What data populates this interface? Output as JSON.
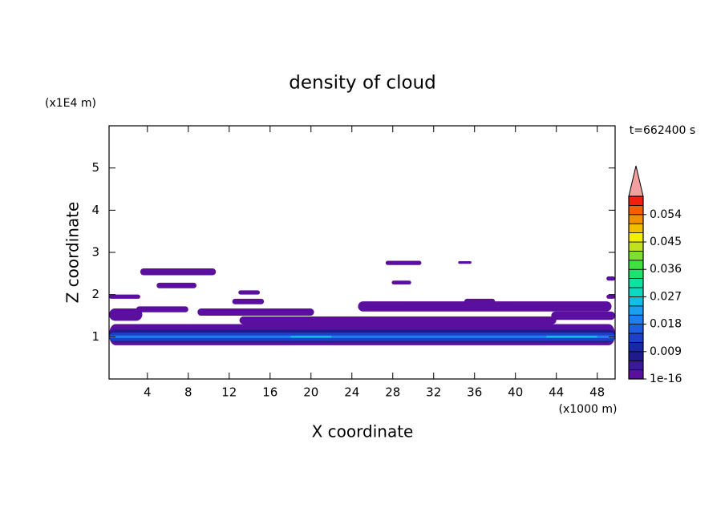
{
  "chart_data": {
    "type": "contour",
    "title": "density of cloud",
    "xlabel": "X coordinate",
    "ylabel": "Z coordinate",
    "xunit": "(x1000 m)",
    "yunit": "(x1E4 m)",
    "annotation": "t=662400 s",
    "xlim": [
      0.25,
      49.75
    ],
    "ylim": [
      0,
      6
    ],
    "xticks": [
      4,
      8,
      12,
      16,
      20,
      24,
      28,
      32,
      36,
      40,
      44,
      48
    ],
    "yticks": [
      1,
      2,
      3,
      4,
      5
    ],
    "clim": [
      0,
      0.06
    ],
    "cticks": [
      {
        "value": 1e-16,
        "label": "1e-16"
      },
      0.009,
      0.018,
      0.027,
      0.036,
      0.045,
      0.054
    ],
    "colors": [
      "#5b0f9e",
      "#3a1a9a",
      "#201a8c",
      "#1a28a8",
      "#1e40c8",
      "#1f5ee0",
      "#1e80f0",
      "#1aa0f0",
      "#10c0e0",
      "#10d8c0",
      "#10e0a0",
      "#20e070",
      "#40e040",
      "#80e030",
      "#c0e020",
      "#f0f000",
      "#f0c000",
      "#f09000",
      "#f06000",
      "#f02010"
    ],
    "over_color": "#f4a0a0",
    "regions": [
      {
        "x": [
          0.25,
          49.75
        ],
        "z": [
          0.8,
          1.3
        ],
        "value": 0.002
      },
      {
        "x": [
          0.25,
          49.75
        ],
        "z": [
          0.87,
          1.17
        ],
        "value": 0.006
      },
      {
        "x": [
          0.25,
          49.75
        ],
        "z": [
          0.9,
          1.1
        ],
        "value": 0.012
      },
      {
        "x": [
          0.25,
          49.75
        ],
        "z": [
          0.97,
          1.03
        ],
        "value": 0.02
      },
      {
        "x": [
          18,
          22
        ],
        "z": [
          0.98,
          1.02
        ],
        "value": 0.024
      },
      {
        "x": [
          43,
          48
        ],
        "z": [
          0.98,
          1.02
        ],
        "value": 0.024
      },
      {
        "x": [
          0.25,
          3.5
        ],
        "z": [
          1.38,
          1.67
        ],
        "value": 0.001
      },
      {
        "x": [
          8.9,
          20.3
        ],
        "z": [
          1.5,
          1.67
        ],
        "value": 0.001
      },
      {
        "x": [
          13,
          44
        ],
        "z": [
          1.3,
          1.48
        ],
        "value": 0.002
      },
      {
        "x": [
          43.5,
          49.75
        ],
        "z": [
          1.4,
          1.6
        ],
        "value": 0.001
      },
      {
        "x": [
          24.6,
          49.4
        ],
        "z": [
          1.6,
          1.84
        ],
        "value": 0.001
      },
      {
        "x": [
          35,
          38
        ],
        "z": [
          1.78,
          1.9
        ],
        "value": 0.001
      },
      {
        "x": [
          0.25,
          3.3
        ],
        "z": [
          1.9,
          2.0
        ],
        "value": 0.001
      },
      {
        "x": [
          2.9,
          8
        ],
        "z": [
          1.58,
          1.72
        ],
        "value": 0.001
      },
      {
        "x": [
          12.3,
          15.4
        ],
        "z": [
          1.77,
          1.9
        ],
        "value": 0.001
      },
      {
        "x": [
          12.9,
          15
        ],
        "z": [
          2.0,
          2.1
        ],
        "value": 0.001
      },
      {
        "x": [
          4.9,
          8.8
        ],
        "z": [
          2.15,
          2.28
        ],
        "value": 0.001
      },
      {
        "x": [
          3.3,
          10.7
        ],
        "z": [
          2.46,
          2.62
        ],
        "value": 0.001
      },
      {
        "x": [
          27.9,
          29.8
        ],
        "z": [
          2.24,
          2.33
        ],
        "value": 0.001
      },
      {
        "x": [
          27.3,
          30.8
        ],
        "z": [
          2.7,
          2.8
        ],
        "value": 0.001
      },
      {
        "x": [
          34.4,
          35.7
        ],
        "z": [
          2.73,
          2.79
        ],
        "value": 0.001
      },
      {
        "x": [
          48.9,
          49.75
        ],
        "z": [
          2.33,
          2.43
        ],
        "value": 0.001
      },
      {
        "x": [
          48.9,
          49.75
        ],
        "z": [
          1.9,
          2.0
        ],
        "value": 0.001
      }
    ]
  }
}
